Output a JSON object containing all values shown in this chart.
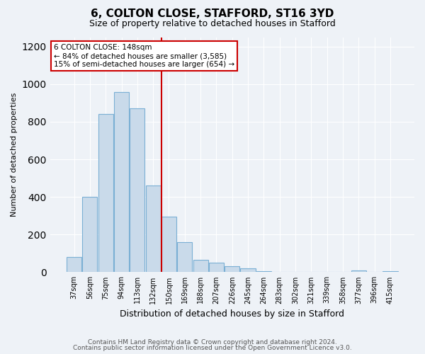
{
  "title1": "6, COLTON CLOSE, STAFFORD, ST16 3YD",
  "title2": "Size of property relative to detached houses in Stafford",
  "xlabel": "Distribution of detached houses by size in Stafford",
  "ylabel": "Number of detached properties",
  "categories": [
    "37sqm",
    "56sqm",
    "75sqm",
    "94sqm",
    "113sqm",
    "132sqm",
    "150sqm",
    "169sqm",
    "188sqm",
    "207sqm",
    "226sqm",
    "245sqm",
    "264sqm",
    "283sqm",
    "302sqm",
    "321sqm",
    "339sqm",
    "358sqm",
    "377sqm",
    "396sqm",
    "415sqm"
  ],
  "values": [
    80,
    400,
    840,
    960,
    870,
    460,
    295,
    160,
    65,
    50,
    30,
    20,
    5,
    2,
    2,
    1,
    0,
    0,
    10,
    0,
    5
  ],
  "bar_color": "#c9daea",
  "bar_edge_color": "#7aafd4",
  "red_line_index": 6,
  "annotation_line1": "6 COLTON CLOSE: 148sqm",
  "annotation_line2": "← 84% of detached houses are smaller (3,585)",
  "annotation_line3": "15% of semi-detached houses are larger (654) →",
  "annotation_box_color": "#ffffff",
  "annotation_box_edge_color": "#cc0000",
  "footer1": "Contains HM Land Registry data © Crown copyright and database right 2024.",
  "footer2": "Contains public sector information licensed under the Open Government Licence v3.0.",
  "ylim": [
    0,
    1250
  ],
  "yticks": [
    0,
    200,
    400,
    600,
    800,
    1000,
    1200
  ],
  "background_color": "#eef2f7",
  "plot_background": "#eef2f7",
  "title_fontsize": 11,
  "subtitle_fontsize": 9,
  "ylabel_fontsize": 8,
  "xlabel_fontsize": 9,
  "tick_fontsize": 7,
  "ann_fontsize": 7.5,
  "footer_fontsize": 6.5
}
